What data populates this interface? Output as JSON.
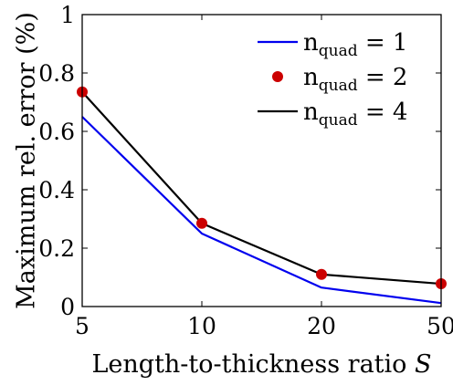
{
  "chart_data": {
    "type": "line",
    "title": "",
    "xlabel": "Length-to-thickness ratio S",
    "ylabel": "Maximum rel. error (%)",
    "categories": [
      "5",
      "10",
      "20",
      "50"
    ],
    "ylim": [
      0,
      1
    ],
    "yticks": [
      "0",
      "0.2",
      "0.4",
      "0.6",
      "0.8",
      "1"
    ],
    "legend_position": "top-right",
    "grid": false,
    "series": [
      {
        "name": "n_quad = 1",
        "label_main": "n",
        "label_sub": "quad",
        "label_rest": " = 1",
        "style": "line",
        "color": "#0000ee",
        "values": [
          0.65,
          0.25,
          0.065,
          0.012
        ]
      },
      {
        "name": "n_quad = 2",
        "label_main": "n",
        "label_sub": "quad",
        "label_rest": " = 2",
        "style": "markers",
        "color": "#cc0000",
        "values": [
          0.735,
          0.285,
          0.11,
          0.078
        ]
      },
      {
        "name": "n_quad = 4",
        "label_main": "n",
        "label_sub": "quad",
        "label_rest": " = 4",
        "style": "line",
        "color": "#000000",
        "values": [
          0.735,
          0.285,
          0.11,
          0.078
        ]
      }
    ]
  }
}
